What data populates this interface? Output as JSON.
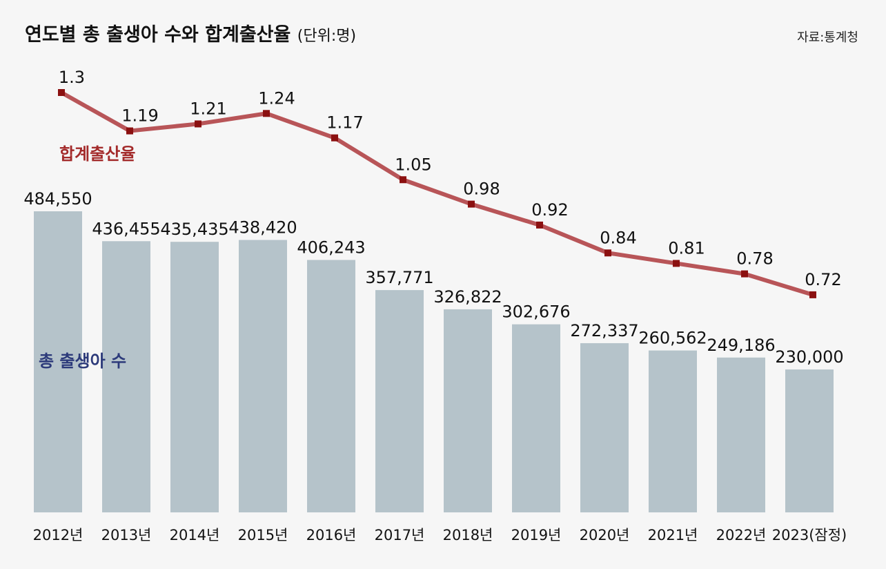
{
  "chart_data": {
    "type": "bar",
    "title": "연도별 총 출생아 수와 합계출산율",
    "unit": "(단위:명)",
    "source": "자료:통계청",
    "categories": [
      "2012년",
      "2013년",
      "2014년",
      "2015년",
      "2016년",
      "2017년",
      "2018년",
      "2019년",
      "2020년",
      "2021년",
      "2022년",
      "2023(잠정)"
    ],
    "series": [
      {
        "name": "총 출생아 수",
        "kind": "bar",
        "values": [
          484550,
          436455,
          435435,
          438420,
          406243,
          357771,
          326822,
          302676,
          272337,
          260562,
          249186,
          230000
        ],
        "labels": [
          "484,550",
          "436,455",
          "435,435",
          "438,420",
          "406,243",
          "357,771",
          "326,822",
          "302,676",
          "272,337",
          "260,562",
          "249,186",
          "230,000"
        ]
      },
      {
        "name": "합계출산율",
        "kind": "line",
        "values": [
          1.3,
          1.19,
          1.21,
          1.24,
          1.17,
          1.05,
          0.98,
          0.92,
          0.84,
          0.81,
          0.78,
          0.72
        ],
        "labels": [
          "1.3",
          "1.19",
          "1.21",
          "1.24",
          "1.17",
          "1.05",
          "0.98",
          "0.92",
          "0.84",
          "0.81",
          "0.78",
          "0.72"
        ]
      }
    ],
    "colors": {
      "bar": "#b5c3ca",
      "line": "#b85558",
      "marker": "#8b1010",
      "rate_label": "#a32a2a",
      "births_label": "#2c3a7a"
    },
    "grid": false,
    "legend": "inline"
  }
}
